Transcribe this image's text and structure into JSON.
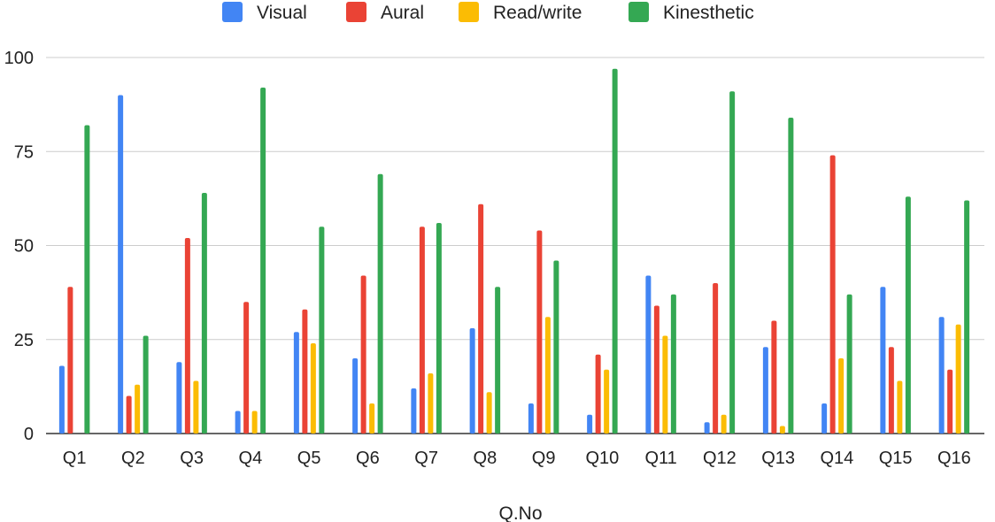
{
  "chart_data": {
    "type": "bar",
    "title": "",
    "xlabel": "Q.No",
    "ylabel": "",
    "ylim": [
      0,
      100
    ],
    "yticks": [
      0,
      25,
      50,
      75,
      100
    ],
    "grid": true,
    "legend_position": "top-center",
    "categories": [
      "Q1",
      "Q2",
      "Q3",
      "Q4",
      "Q5",
      "Q6",
      "Q7",
      "Q8",
      "Q9",
      "Q10",
      "Q11",
      "Q12",
      "Q13",
      "Q14",
      "Q15",
      "Q16"
    ],
    "series": [
      {
        "name": "Visual",
        "color": "#4285f4",
        "values": [
          18,
          90,
          19,
          6,
          27,
          20,
          12,
          28,
          8,
          5,
          42,
          3,
          23,
          8,
          39,
          31
        ]
      },
      {
        "name": "Aural",
        "color": "#ea4335",
        "values": [
          39,
          10,
          52,
          35,
          33,
          42,
          55,
          61,
          54,
          21,
          34,
          40,
          30,
          74,
          23,
          17
        ]
      },
      {
        "name": "Read/write",
        "color": "#fbbc04",
        "values": [
          0,
          13,
          14,
          6,
          24,
          8,
          16,
          11,
          31,
          17,
          26,
          5,
          2,
          20,
          14,
          29
        ]
      },
      {
        "name": "Kinesthetic",
        "color": "#34a853",
        "values": [
          82,
          26,
          64,
          92,
          55,
          69,
          56,
          39,
          46,
          97,
          37,
          91,
          84,
          37,
          63,
          62
        ]
      }
    ]
  }
}
